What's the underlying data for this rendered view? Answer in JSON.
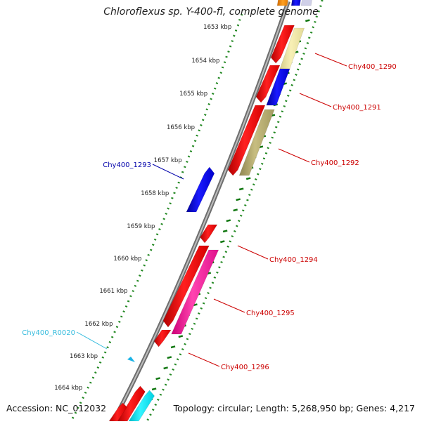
{
  "title": "Chloroflexus sp. Y-400-fl, complete genome",
  "footer": {
    "accession": "Accession: NC_012032",
    "summary": "Topology: circular; Length: 5,268,950 bp; Genes: 4,217"
  },
  "ruler": {
    "ticks": [
      "1653 kbp",
      "1654 kbp",
      "1655 kbp",
      "1656 kbp",
      "1657 kbp",
      "1658 kbp",
      "1659 kbp",
      "1660 kbp",
      "1661 kbp",
      "1662 kbp",
      "1663 kbp",
      "1664 kbp"
    ]
  },
  "gene_labels": [
    {
      "text": "Chy400_1290",
      "color": "#cc0000"
    },
    {
      "text": "Chy400_1291",
      "color": "#cc0000"
    },
    {
      "text": "Chy400_1292",
      "color": "#cc0000"
    },
    {
      "text": "Chy400_1293",
      "color": "#0000aa"
    },
    {
      "text": "Chy400_1294",
      "color": "#cc0000"
    },
    {
      "text": "Chy400_1295",
      "color": "#cc0000"
    },
    {
      "text": "Chy400_1296",
      "color": "#cc0000"
    },
    {
      "text": "Chy400_R0020",
      "color": "#33bbdd"
    }
  ],
  "colors": {
    "cds": "#ff0000",
    "cds_blue": "#0000ee",
    "khaki": "#b8ae6e",
    "pale_yellow": "#f1e8a4",
    "magenta": "#ff2aa2",
    "cyan": "#11e8f2",
    "orange": "#ff8c00",
    "backbone": "#888888",
    "ruler_dots": "#228822",
    "gc_ticks": "#117711"
  }
}
